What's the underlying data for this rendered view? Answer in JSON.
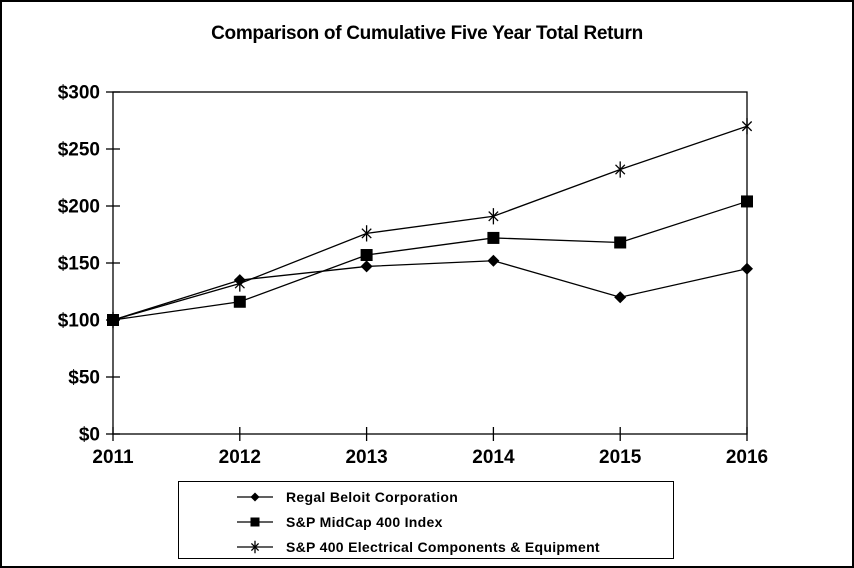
{
  "title": "Comparison of Cumulative Five Year Total Return",
  "chart_data": {
    "type": "line",
    "x_labels": [
      "2011",
      "2012",
      "2013",
      "2014",
      "2015",
      "2016"
    ],
    "y_tick_labels": [
      "$0",
      "$50",
      "$100",
      "$150",
      "$200",
      "$250",
      "$300"
    ],
    "y_tick_values": [
      0,
      50,
      100,
      150,
      200,
      250,
      300
    ],
    "ylim": [
      0,
      300
    ],
    "grid": false,
    "legend_position": "bottom",
    "line_color": "#000000",
    "background_color": "#ffffff",
    "series": [
      {
        "name": "Regal Beloit Corporation",
        "marker": "diamond",
        "values": [
          100,
          135,
          147,
          152,
          120,
          145
        ]
      },
      {
        "name": "S&P MidCap 400 Index",
        "marker": "square",
        "values": [
          100,
          116,
          157,
          172,
          168,
          204
        ]
      },
      {
        "name": "S&P 400 Electrical Components & Equipment",
        "marker": "asterisk",
        "values": [
          100,
          132,
          176,
          191,
          232,
          270
        ]
      }
    ]
  }
}
